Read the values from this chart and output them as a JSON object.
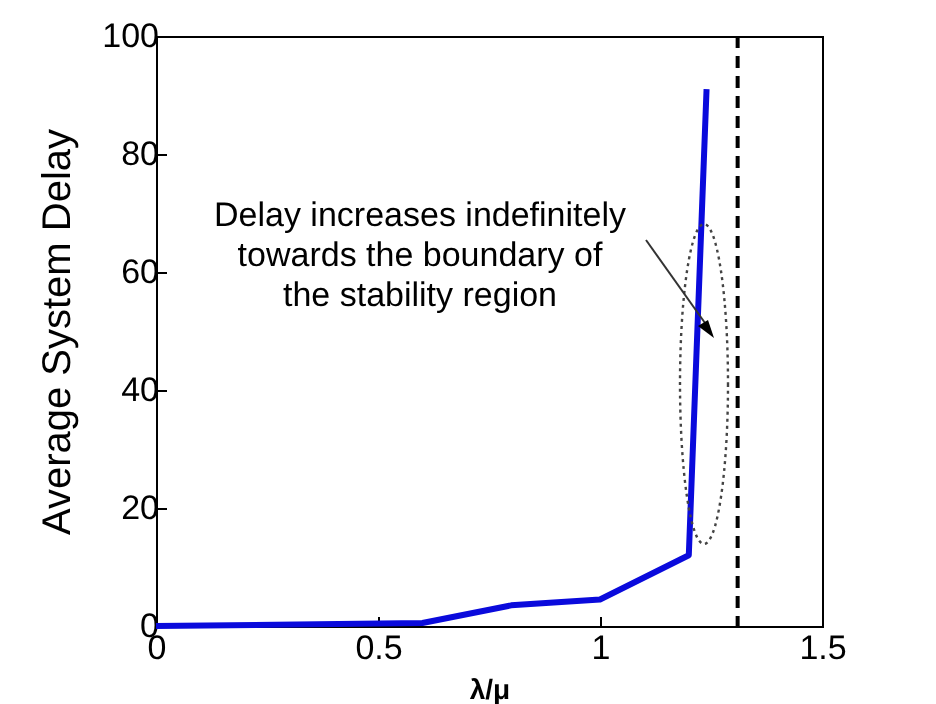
{
  "chart_data": {
    "type": "line",
    "xlabel": "λ/μ",
    "ylabel": "Average System Delay",
    "x": [
      0,
      0.6,
      0.8,
      1.0,
      1.2,
      1.24
    ],
    "series": [
      {
        "color": "#0a0adc",
        "values": [
          0,
          0.5,
          3.5,
          4.5,
          12,
          91
        ]
      }
    ],
    "xlim": [
      0,
      1.5
    ],
    "xticks": [
      0,
      0.5,
      1,
      1.5
    ],
    "ylim": [
      0,
      100
    ],
    "yticks": [
      0,
      20,
      40,
      60,
      80,
      100
    ],
    "ref_lines": [
      {
        "axis": "x",
        "value": 1.31,
        "color": "#000000",
        "line_style": "dashed"
      }
    ],
    "annotations": [
      "Delay increases indefinitely\ntowards the boundary of\nthe stability region"
    ],
    "grid": false,
    "marker": "none",
    "line_style": "solid"
  }
}
